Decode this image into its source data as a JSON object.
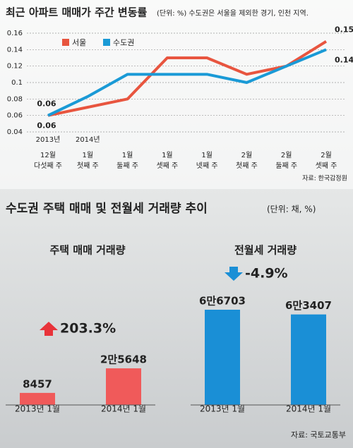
{
  "chart_data": [
    {
      "type": "line",
      "title": "최근 아파트 매매가 주간 변동률",
      "subtitle": "(단위: %) 수도권은 서울을 제외한 경기, 인천 지역.",
      "categories": [
        "12월 다섯째 주",
        "1월 첫째 주",
        "1월 둘째 주",
        "1월 셋째 주",
        "1월 넷째 주",
        "2월 첫째 주",
        "2월 둘째 주",
        "2월 셋째 주"
      ],
      "years": [
        "2013년",
        "2014년"
      ],
      "series": [
        {
          "name": "서울",
          "color": "#e8553f",
          "values": [
            0.06,
            0.07,
            0.08,
            0.13,
            0.13,
            0.11,
            0.12,
            0.15
          ],
          "value_labels": [
            "0.06",
            null,
            null,
            null,
            null,
            null,
            null,
            "0.15"
          ]
        },
        {
          "name": "수도권",
          "color": "#1a9ad6",
          "values": [
            0.06,
            0.083,
            0.11,
            0.11,
            0.11,
            0.1,
            0.12,
            0.14
          ],
          "value_labels": [
            "0.06",
            null,
            null,
            null,
            null,
            null,
            null,
            "0.14"
          ]
        }
      ],
      "ylim": [
        0.04,
        0.16
      ],
      "yticks": [
        0.04,
        0.06,
        0.08,
        0.1,
        0.12,
        0.14,
        0.16
      ],
      "grid": true,
      "source": "자료: 한국감정원"
    },
    {
      "type": "bar",
      "title": "주택 매매 거래량",
      "categories": [
        "2013년 1월",
        "2014년 1월"
      ],
      "values": [
        8457,
        25648
      ],
      "value_labels": [
        "8457",
        "2만5648"
      ],
      "color": "#f05a5a",
      "change": "203.3%",
      "change_color": "#e8333a"
    },
    {
      "type": "bar",
      "title": "전월세 거래량",
      "categories": [
        "2013년 1월",
        "2014년 1월"
      ],
      "values": [
        66703,
        63407
      ],
      "value_labels": [
        "6만6703",
        "6만3407"
      ],
      "color": "#1a8fd6",
      "change": "-4.9%",
      "change_color": "#1a8fd6"
    }
  ],
  "section": {
    "title": "수도권 주택 매매 및 전월세 거래량 추이",
    "unit": "(단위: 채, %)",
    "source": "자료: 국토교통부"
  }
}
